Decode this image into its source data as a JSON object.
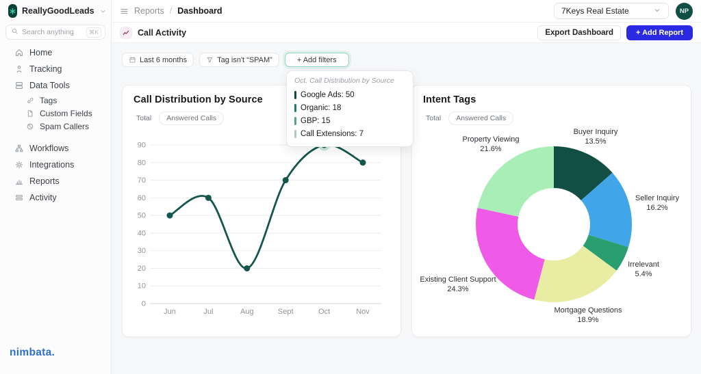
{
  "brand": {
    "name": "ReallyGoodLeads"
  },
  "sidebar": {
    "search": {
      "placeholder": "Search anything",
      "shortcut": "⌘K"
    },
    "items": [
      {
        "label": "Home",
        "icon": "home-icon",
        "level": 0
      },
      {
        "label": "Tracking",
        "icon": "tracking-icon",
        "level": 0
      },
      {
        "label": "Data Tools",
        "icon": "data-tools-icon",
        "level": 0
      },
      {
        "label": "Tags",
        "icon": "tag-icon",
        "level": 1
      },
      {
        "label": "Custom Fields",
        "icon": "file-icon",
        "level": 1
      },
      {
        "label": "Spam Callers",
        "icon": "ban-icon",
        "level": 1
      },
      {
        "label": "Workflows",
        "icon": "workflow-icon",
        "level": 0,
        "gap_before": true
      },
      {
        "label": "Integrations",
        "icon": "gear-icon",
        "level": 0
      },
      {
        "label": "Reports",
        "icon": "reports-icon",
        "level": 0
      },
      {
        "label": "Activity",
        "icon": "activity-icon",
        "level": 0
      }
    ],
    "footer_logo": "nimbata."
  },
  "topbar": {
    "breadcrumb": {
      "section": "Reports",
      "separator": "/",
      "page": "Dashboard"
    },
    "workspace": "7Keys Real Estate",
    "avatar": "NP"
  },
  "section_bar": {
    "title": "Call Activity",
    "export_label": "Export Dashboard",
    "add_report_label": "+ Add Report"
  },
  "filters": {
    "chips": [
      {
        "label": "Last 6 months",
        "icon": "calendar-icon"
      },
      {
        "label": "Tag isn't “SPAM”",
        "icon": "filter-icon"
      }
    ],
    "add_label": "+ Add filters"
  },
  "card_tabs": {
    "total": "Total",
    "answered": "Answered Calls"
  },
  "tooltip": {
    "title": "Oct. Call Distribution by Source",
    "items": [
      {
        "label": "Google Ads",
        "value": 50,
        "color": "#0b4a41"
      },
      {
        "label": "Organic",
        "value": 18,
        "color": "#1e7a6a"
      },
      {
        "label": "GBP",
        "value": 15,
        "color": "#56a093"
      },
      {
        "label": "Call Extensions",
        "value": 7,
        "color": "#a9cbc3"
      }
    ]
  },
  "chart_data": [
    {
      "type": "line",
      "title": "Call Distribution by Source",
      "x": [
        "Jun",
        "Jul",
        "Aug",
        "Sept",
        "Oct",
        "Nov"
      ],
      "series": [
        {
          "name": "Total Calls",
          "values": [
            50,
            60,
            20,
            70,
            90,
            80
          ]
        }
      ],
      "ylim": [
        0,
        90
      ],
      "ytick_step": 10,
      "grid": true,
      "legend": false,
      "highlight_x": "Oct",
      "line_color": "#14564c"
    },
    {
      "type": "pie",
      "title": "Intent Tags",
      "donut": true,
      "start_angle_deg": 0,
      "direction": "clockwise",
      "segments": [
        {
          "label": "Buyer Inquiry",
          "pct": 13.5,
          "color": "#134e44"
        },
        {
          "label": "Seller Inquiry",
          "pct": 16.2,
          "color": "#41a6e8"
        },
        {
          "label": "Irrelevant",
          "pct": 5.4,
          "color": "#2b9e70"
        },
        {
          "label": "Mortgage Questions",
          "pct": 18.9,
          "color": "#e9eda4"
        },
        {
          "label": "Existing Client Support",
          "pct": 24.3,
          "color": "#ef5ae6"
        },
        {
          "label": "Property Viewing",
          "pct": 21.6,
          "color": "#a9eeb7"
        }
      ]
    }
  ],
  "colors": {
    "accent_blue": "#2a2ae2",
    "brand_dark_teal": "#0f4f46",
    "halo_teal": "#b9ddd5",
    "nimbata_blue": "#2e6fc9"
  }
}
